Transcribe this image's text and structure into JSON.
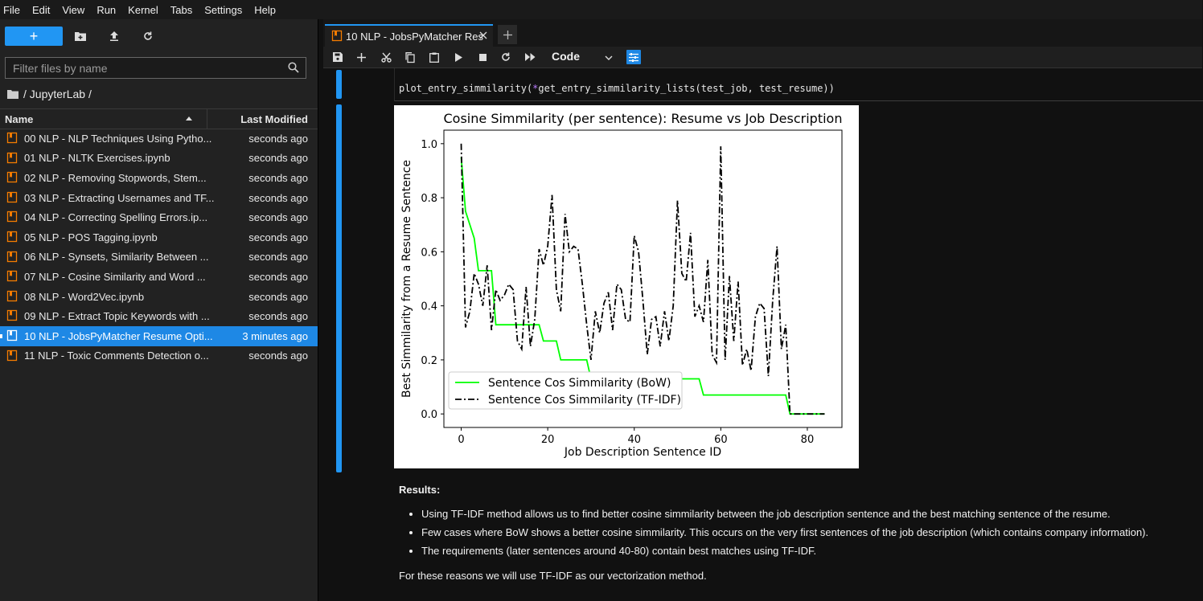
{
  "menu": [
    "File",
    "Edit",
    "View",
    "Run",
    "Kernel",
    "Tabs",
    "Settings",
    "Help"
  ],
  "filebrowser": {
    "new_label": "+",
    "filter_placeholder": "Filter files by name",
    "breadcrumb": "/ JupyterLab /",
    "col_name": "Name",
    "col_modified": "Last Modified",
    "files": [
      {
        "name": "00 NLP - NLP Techniques Using Pytho...",
        "modified": "seconds ago"
      },
      {
        "name": "01 NLP - NLTK Exercises.ipynb",
        "modified": "seconds ago"
      },
      {
        "name": "02 NLP - Removing Stopwords, Stem...",
        "modified": "seconds ago"
      },
      {
        "name": "03 NLP - Extracting Usernames and TF...",
        "modified": "seconds ago"
      },
      {
        "name": "04 NLP - Correcting Spelling Errors.ip...",
        "modified": "seconds ago"
      },
      {
        "name": "05 NLP - POS Tagging.ipynb",
        "modified": "seconds ago"
      },
      {
        "name": "06 NLP - Synsets, Similarity Between ...",
        "modified": "seconds ago"
      },
      {
        "name": "07 NLP - Cosine Similarity and Word ...",
        "modified": "seconds ago"
      },
      {
        "name": "08 NLP - Word2Vec.ipynb",
        "modified": "seconds ago"
      },
      {
        "name": "09 NLP - Extract Topic Keywords with ...",
        "modified": "seconds ago"
      },
      {
        "name": "10 NLP - JobsPyMatcher Resume Opti...",
        "modified": "3 minutes ago",
        "selected": true
      },
      {
        "name": "11 NLP - Toxic Comments Detection o...",
        "modified": "seconds ago"
      }
    ]
  },
  "tab": {
    "title": "10 NLP - JobsPyMatcher Res",
    "add": "+"
  },
  "notebook": {
    "cell_type": "Code",
    "code_pre": "plot_entry_simmilarity(",
    "code_star": "*",
    "code_post": "get_entry_simmilarity_lists(test_job, test_resume))"
  },
  "chart_data": {
    "type": "line",
    "title": "Cosine Simmilarity (per sentence): Resume vs Job Description",
    "xlabel": "Job Description Sentence ID",
    "ylabel": "Best Simmilarity from a Resume Sentence",
    "xlim": [
      -4,
      88
    ],
    "ylim": [
      -0.05,
      1.05
    ],
    "xticks": [
      0,
      20,
      40,
      60,
      80
    ],
    "yticks": [
      0.0,
      0.2,
      0.4,
      0.6,
      0.8,
      1.0
    ],
    "xtick_labels": [
      "0",
      "20",
      "40",
      "60",
      "80"
    ],
    "ytick_labels": [
      "0.0",
      "0.2",
      "0.4",
      "0.6",
      "0.8",
      "1.0"
    ],
    "legend_position": "lower-left",
    "series": [
      {
        "name": "Sentence Cos Simmilarity (BoW)",
        "color": "#00ff00",
        "style": "solid",
        "x": [
          0,
          1,
          2,
          3,
          4,
          5,
          6,
          7,
          8,
          9,
          10,
          11,
          12,
          13,
          14,
          15,
          16,
          17,
          18,
          19,
          20,
          21,
          22,
          23,
          24,
          25,
          26,
          27,
          28,
          29,
          30,
          31,
          32,
          33,
          34,
          35,
          36,
          37,
          38,
          39,
          40,
          41,
          42,
          43,
          44,
          45,
          46,
          47,
          48,
          49,
          50,
          51,
          52,
          53,
          54,
          55,
          56,
          57,
          58,
          59,
          60,
          61,
          62,
          63,
          64,
          65,
          66,
          67,
          68,
          69,
          70,
          71,
          72,
          73,
          74,
          75,
          76,
          77,
          78,
          79,
          80,
          81,
          82,
          83,
          84
        ],
        "y": [
          0.95,
          0.75,
          0.7,
          0.65,
          0.53,
          0.53,
          0.53,
          0.53,
          0.33,
          0.33,
          0.33,
          0.33,
          0.33,
          0.33,
          0.33,
          0.33,
          0.33,
          0.33,
          0.33,
          0.27,
          0.27,
          0.27,
          0.27,
          0.2,
          0.2,
          0.2,
          0.2,
          0.2,
          0.2,
          0.2,
          0.13,
          0.13,
          0.13,
          0.13,
          0.13,
          0.13,
          0.13,
          0.13,
          0.13,
          0.13,
          0.13,
          0.13,
          0.13,
          0.13,
          0.13,
          0.13,
          0.13,
          0.13,
          0.13,
          0.13,
          0.13,
          0.13,
          0.13,
          0.13,
          0.13,
          0.13,
          0.07,
          0.07,
          0.07,
          0.07,
          0.07,
          0.07,
          0.07,
          0.07,
          0.07,
          0.07,
          0.07,
          0.07,
          0.07,
          0.07,
          0.07,
          0.07,
          0.07,
          0.07,
          0.07,
          0.07,
          0.0,
          0.0,
          0.0,
          0.0,
          0.0,
          0.0,
          0.0,
          0.0,
          0.0
        ]
      },
      {
        "name": "Sentence Cos Simmilarity (TF-IDF)",
        "color": "#000000",
        "style": "dashdot",
        "x": [
          0,
          1,
          2,
          3,
          4,
          5,
          6,
          7,
          8,
          9,
          10,
          11,
          12,
          13,
          14,
          15,
          16,
          17,
          18,
          19,
          20,
          21,
          22,
          23,
          24,
          25,
          26,
          27,
          28,
          29,
          30,
          31,
          32,
          33,
          34,
          35,
          36,
          37,
          38,
          39,
          40,
          41,
          42,
          43,
          44,
          45,
          46,
          47,
          48,
          49,
          50,
          51,
          52,
          53,
          54,
          55,
          56,
          57,
          58,
          59,
          60,
          61,
          62,
          63,
          64,
          65,
          66,
          67,
          68,
          69,
          70,
          71,
          72,
          73,
          74,
          75,
          76,
          77,
          78,
          79,
          80,
          81,
          82,
          83,
          84
        ],
        "y": [
          1.0,
          0.32,
          0.38,
          0.52,
          0.48,
          0.4,
          0.55,
          0.31,
          0.46,
          0.42,
          0.44,
          0.48,
          0.46,
          0.27,
          0.24,
          0.47,
          0.25,
          0.35,
          0.61,
          0.55,
          0.62,
          0.81,
          0.46,
          0.38,
          0.74,
          0.6,
          0.62,
          0.61,
          0.48,
          0.33,
          0.2,
          0.38,
          0.3,
          0.41,
          0.45,
          0.31,
          0.48,
          0.46,
          0.35,
          0.34,
          0.66,
          0.6,
          0.42,
          0.22,
          0.35,
          0.36,
          0.25,
          0.38,
          0.27,
          0.4,
          0.79,
          0.52,
          0.49,
          0.67,
          0.36,
          0.4,
          0.34,
          0.57,
          0.22,
          0.19,
          0.99,
          0.2,
          0.51,
          0.27,
          0.49,
          0.18,
          0.24,
          0.16,
          0.36,
          0.41,
          0.39,
          0.14,
          0.42,
          0.62,
          0.24,
          0.33,
          0.0,
          0.0,
          0.0,
          0.0,
          0.0,
          0.0,
          0.0,
          0.0,
          0.0
        ]
      }
    ]
  },
  "markdown": {
    "results": "Results:",
    "bullets": [
      "Using TF-IDF method allows us to find better cosine simmilarity between the job description sentence and the best matching sentence of the resume.",
      "Few cases where BoW shows a better cosine simmilarity. This occurs on the very first sentences of the job description (which contains company information).",
      "The requirements (later sentences around 40-80) contain best matches using TF-IDF."
    ],
    "conclusion": "For these reasons we will use TF-IDF as our vectorization method."
  }
}
